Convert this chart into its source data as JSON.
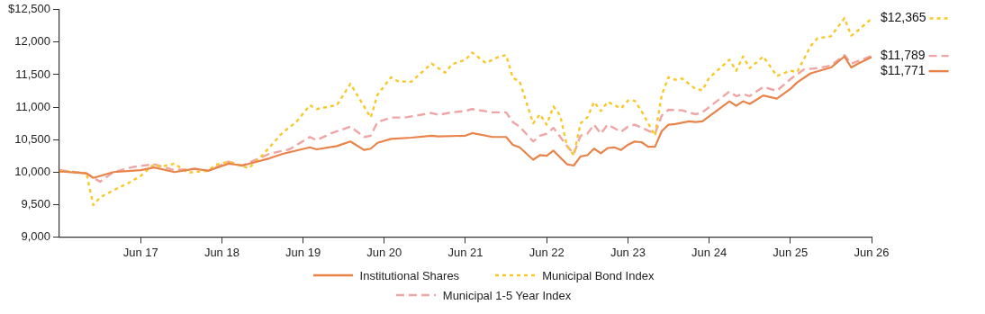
{
  "chart_data": {
    "type": "line",
    "xlim": [
      "2016-06",
      "2026-06"
    ],
    "xticks": [
      {
        "value": "2017-06",
        "label": "Jun 17"
      },
      {
        "value": "2018-06",
        "label": "Jun 18"
      },
      {
        "value": "2019-06",
        "label": "Jun 19"
      },
      {
        "value": "2020-06",
        "label": "Jun 20"
      },
      {
        "value": "2021-06",
        "label": "Jun 21"
      },
      {
        "value": "2022-06",
        "label": "Jun 22"
      },
      {
        "value": "2023-06",
        "label": "Jun 23"
      },
      {
        "value": "2024-06",
        "label": "Jun 24"
      },
      {
        "value": "2025-06",
        "label": "Jun 25"
      },
      {
        "value": "2026-06",
        "label": "Jun 26"
      }
    ],
    "ylim": [
      9000,
      12500
    ],
    "yticks": [
      {
        "value": 9000,
        "label": "9,000"
      },
      {
        "value": 9500,
        "label": "9,500"
      },
      {
        "value": 10000,
        "label": "10,000"
      },
      {
        "value": 10500,
        "label": "10,500"
      },
      {
        "value": 11000,
        "label": "11,000"
      },
      {
        "value": 11500,
        "label": "11,500"
      },
      {
        "value": 12000,
        "label": "12,000"
      },
      {
        "value": 12500,
        "label": "$12,500"
      }
    ],
    "grid": false,
    "legend": "bottom",
    "marker": "none",
    "series": [
      {
        "name": "Institutional Shares",
        "color": "#e8834a",
        "line_style": "solid",
        "x": [
          "2016-06",
          "2016-10",
          "2016-11",
          "2017-02",
          "2017-06",
          "2017-08",
          "2017-11",
          "2018-02",
          "2018-04",
          "2018-07",
          "2018-09",
          "2019-01",
          "2019-03",
          "2019-07",
          "2019-08",
          "2019-11",
          "2020-01",
          "2020-03",
          "2020-04",
          "2020-05",
          "2020-07",
          "2020-10",
          "2021-01",
          "2021-02",
          "2021-06",
          "2021-07",
          "2021-10",
          "2021-12",
          "2022-01",
          "2022-02",
          "2022-04",
          "2022-05",
          "2022-06",
          "2022-07",
          "2022-09",
          "2022-10",
          "2022-11",
          "2022-12",
          "2023-01",
          "2023-02",
          "2023-03",
          "2023-04",
          "2023-05",
          "2023-06",
          "2023-07",
          "2023-08",
          "2023-09",
          "2023-10",
          "2023-11",
          "2023-12",
          "2024-01",
          "2024-03",
          "2024-04",
          "2024-05",
          "2024-09",
          "2024-10",
          "2024-11",
          "2024-12",
          "2025-02",
          "2025-04",
          "2025-06",
          "2025-07",
          "2025-09",
          "2025-12",
          "2026-02",
          "2026-03",
          "2026-04",
          "2026-06"
        ],
        "values": [
          10010,
          9980,
          9910,
          10000,
          10030,
          10070,
          10000,
          10050,
          10020,
          10130,
          10100,
          10210,
          10280,
          10380,
          10350,
          10400,
          10470,
          10340,
          10360,
          10450,
          10510,
          10530,
          10560,
          10550,
          10560,
          10600,
          10540,
          10540,
          10420,
          10380,
          10190,
          10260,
          10250,
          10330,
          10120,
          10100,
          10240,
          10260,
          10360,
          10290,
          10370,
          10380,
          10340,
          10420,
          10470,
          10460,
          10390,
          10390,
          10630,
          10730,
          10740,
          10780,
          10770,
          10780,
          11090,
          11020,
          11090,
          11050,
          11180,
          11130,
          11280,
          11380,
          11520,
          11610,
          11780,
          11610,
          11670,
          11771
        ]
      },
      {
        "name": "Municipal Bond Index",
        "color": "#f7c82a",
        "line_style": "dotted",
        "x": [
          "2016-06",
          "2016-07",
          "2016-10",
          "2016-11",
          "2016-12",
          "2017-02",
          "2017-04",
          "2017-06",
          "2017-08",
          "2017-09",
          "2017-11",
          "2018-01",
          "2018-04",
          "2018-05",
          "2018-07",
          "2018-10",
          "2018-12",
          "2019-03",
          "2019-05",
          "2019-07",
          "2019-08",
          "2019-11",
          "2020-01",
          "2020-04",
          "2020-05",
          "2020-07",
          "2020-08",
          "2020-10",
          "2020-12",
          "2021-01",
          "2021-03",
          "2021-04",
          "2021-06",
          "2021-07",
          "2021-09",
          "2021-11",
          "2021-12",
          "2022-01",
          "2022-02",
          "2022-04",
          "2022-05",
          "2022-06",
          "2022-07",
          "2022-08",
          "2022-09",
          "2022-10",
          "2022-11",
          "2022-12",
          "2023-01",
          "2023-02",
          "2023-03",
          "2023-05",
          "2023-06",
          "2023-07",
          "2023-08",
          "2023-10",
          "2023-11",
          "2023-12",
          "2024-01",
          "2024-02",
          "2024-04",
          "2024-05",
          "2024-06",
          "2024-09",
          "2024-10",
          "2024-11",
          "2024-12",
          "2025-02",
          "2025-04",
          "2025-06",
          "2025-07",
          "2025-09",
          "2025-10",
          "2025-12",
          "2026-02",
          "2026-03",
          "2026-04",
          "2026-06"
        ],
        "values": [
          10010,
          10010,
          9980,
          9490,
          9610,
          9720,
          9820,
          9940,
          10120,
          10080,
          10130,
          9990,
          10020,
          10110,
          10160,
          10060,
          10260,
          10610,
          10770,
          11030,
          10970,
          11030,
          11360,
          10840,
          11190,
          11460,
          11400,
          11390,
          11580,
          11670,
          11530,
          11660,
          11730,
          11840,
          11680,
          11780,
          11800,
          11450,
          11400,
          10750,
          10890,
          10730,
          11010,
          10870,
          10400,
          10260,
          10750,
          10840,
          11080,
          10940,
          11080,
          10980,
          11100,
          11100,
          10940,
          10560,
          11190,
          11460,
          11420,
          11440,
          11280,
          11260,
          11450,
          11730,
          11560,
          11780,
          11600,
          11780,
          11480,
          11560,
          11540,
          11940,
          12060,
          12090,
          12370,
          12100,
          12180,
          12365
        ]
      },
      {
        "name": "Municipal 1-5 Year Index",
        "color": "#f0a5a5",
        "line_style": "dashed",
        "x": [
          "2016-06",
          "2016-10",
          "2016-12",
          "2017-02",
          "2017-05",
          "2017-08",
          "2017-11",
          "2018-02",
          "2018-04",
          "2018-07",
          "2018-09",
          "2019-01",
          "2019-04",
          "2019-07",
          "2019-08",
          "2019-10",
          "2020-01",
          "2020-03",
          "2020-04",
          "2020-05",
          "2020-07",
          "2020-09",
          "2021-01",
          "2021-02",
          "2021-04",
          "2021-06",
          "2021-07",
          "2021-10",
          "2021-12",
          "2022-01",
          "2022-02",
          "2022-04",
          "2022-05",
          "2022-06",
          "2022-07",
          "2022-09",
          "2022-10",
          "2022-11",
          "2022-12",
          "2023-01",
          "2023-02",
          "2023-03",
          "2023-05",
          "2023-06",
          "2023-07",
          "2023-10",
          "2023-11",
          "2023-12",
          "2024-02",
          "2024-03",
          "2024-04",
          "2024-05",
          "2024-09",
          "2024-10",
          "2024-11",
          "2024-12",
          "2025-02",
          "2025-04",
          "2025-06",
          "2025-08",
          "2025-10",
          "2025-12",
          "2026-02",
          "2026-03",
          "2026-06"
        ],
        "values": [
          10030,
          9980,
          9850,
          10000,
          10080,
          10120,
          10030,
          10050,
          10020,
          10160,
          10100,
          10280,
          10350,
          10540,
          10490,
          10590,
          10700,
          10540,
          10560,
          10770,
          10840,
          10840,
          10910,
          10880,
          10920,
          10940,
          10970,
          10920,
          10920,
          10770,
          10700,
          10470,
          10560,
          10590,
          10680,
          10400,
          10280,
          10560,
          10590,
          10730,
          10590,
          10730,
          10620,
          10700,
          10730,
          10590,
          10870,
          10960,
          10950,
          10920,
          10890,
          10920,
          11240,
          11170,
          11200,
          11170,
          11310,
          11250,
          11430,
          11580,
          11600,
          11640,
          11800,
          11670,
          11789
        ]
      }
    ],
    "annotations": [
      {
        "text": "$11,771",
        "x": "2026-06",
        "y": 11771
      },
      {
        "text": "$12,365",
        "x": "2026-06",
        "y": 12365
      },
      {
        "text": "$11,789",
        "x": "2026-06",
        "y": 11789
      }
    ]
  }
}
